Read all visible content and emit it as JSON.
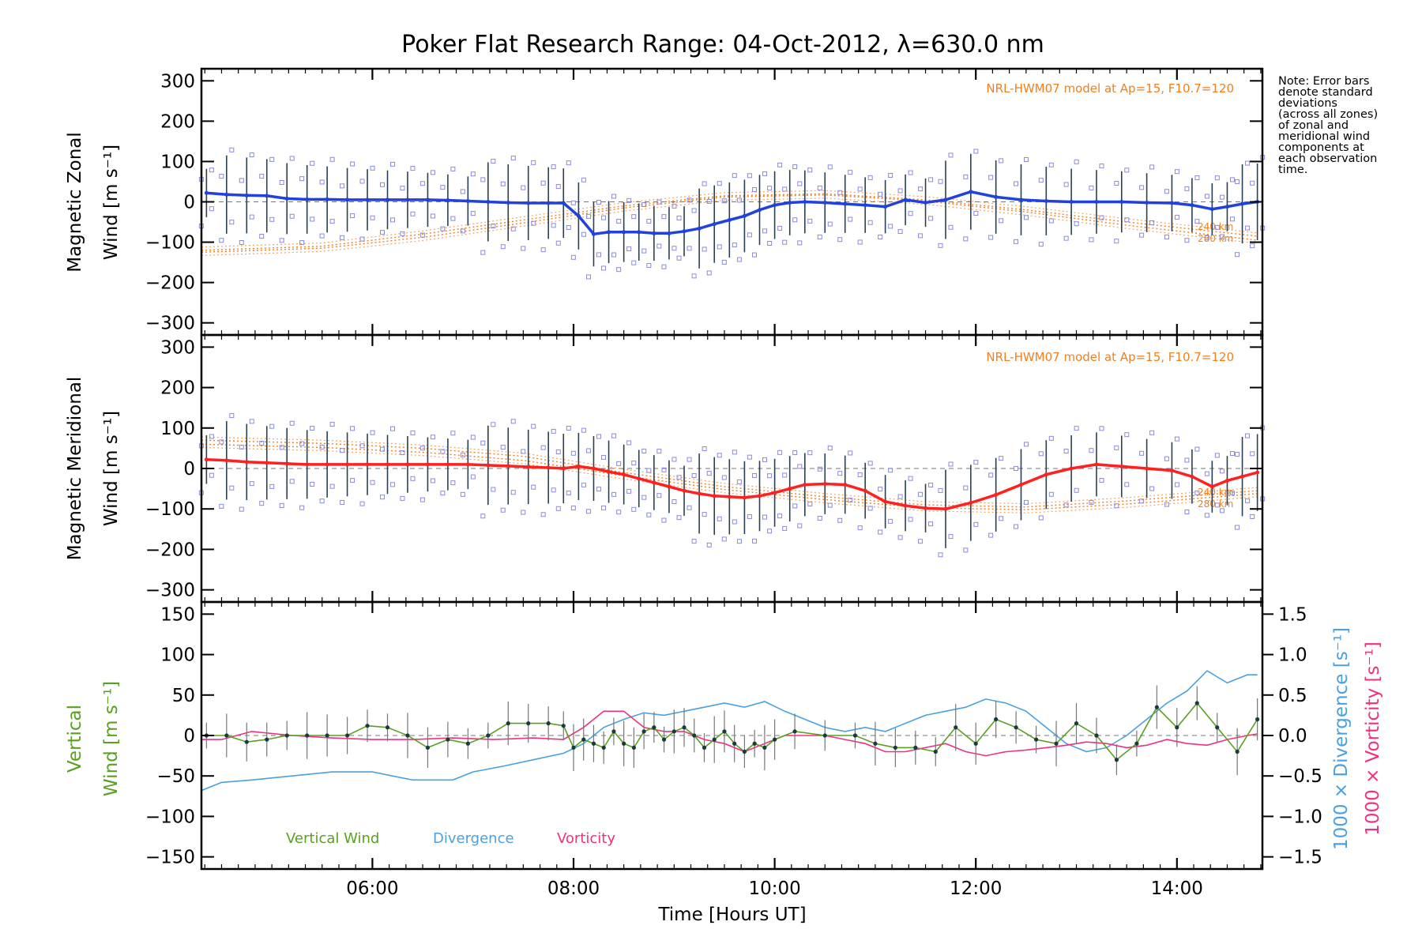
{
  "chart_data": [
    {
      "panel": "zonal",
      "type": "line",
      "title": "Poker Flat Research Range: 04-Oct-2012, λ=630.0 nm",
      "ylabel_line1": "Magnetic Zonal",
      "ylabel_line2": "Wind [m s⁻¹]",
      "ylim": [
        -330,
        330
      ],
      "yticks": [
        300,
        200,
        100,
        0,
        -100,
        -200,
        -300
      ],
      "xlim": [
        4.3,
        14.85
      ],
      "model_label": "NRL-HWM07 model at Ap=15, F10.7=120",
      "model_altitudes": [
        "240 km",
        "280 km"
      ],
      "mean_color": "#2040e0",
      "dense_color": "#4aa8e0",
      "scatter_color": "#8a8ae0",
      "model_color": "#f08020",
      "x": [
        4.35,
        4.55,
        4.75,
        4.95,
        5.15,
        5.35,
        5.55,
        5.75,
        5.95,
        6.15,
        6.35,
        6.55,
        6.75,
        6.95,
        7.15,
        7.35,
        7.55,
        7.75,
        7.9,
        8.05,
        8.2,
        8.35,
        8.5,
        8.65,
        8.8,
        8.95,
        9.1,
        9.25,
        9.4,
        9.55,
        9.7,
        9.85,
        10.0,
        10.15,
        10.3,
        10.5,
        10.7,
        10.9,
        11.1,
        11.3,
        11.5,
        11.7,
        11.95,
        12.2,
        12.45,
        12.7,
        12.95,
        13.2,
        13.45,
        13.7,
        13.95,
        14.15,
        14.35,
        14.5,
        14.65,
        14.8
      ],
      "y": [
        22,
        18,
        16,
        15,
        8,
        6,
        6,
        5,
        5,
        5,
        5,
        5,
        4,
        2,
        0,
        -2,
        -3,
        -3,
        -3,
        -35,
        -80,
        -75,
        -75,
        -75,
        -78,
        -78,
        -73,
        -66,
        -55,
        -45,
        -35,
        -20,
        -8,
        -2,
        0,
        -2,
        -5,
        -8,
        -12,
        5,
        -2,
        5,
        25,
        12,
        5,
        2,
        0,
        0,
        0,
        -2,
        -3,
        -8,
        -18,
        -12,
        -5,
        0
      ],
      "model_240km": [
        [
          4.3,
          -120
        ],
        [
          5.5,
          -110
        ],
        [
          6.5,
          -80
        ],
        [
          7.5,
          -45
        ],
        [
          8.5,
          -10
        ],
        [
          9.5,
          15
        ],
        [
          10.5,
          20
        ],
        [
          11.5,
          5
        ],
        [
          12.5,
          -20
        ],
        [
          13.5,
          -50
        ],
        [
          14.8,
          -85
        ]
      ],
      "model_280km": [
        [
          4.3,
          -125
        ],
        [
          5.5,
          -115
        ],
        [
          6.5,
          -88
        ],
        [
          7.5,
          -52
        ],
        [
          8.5,
          -15
        ],
        [
          9.5,
          12
        ],
        [
          10.5,
          17
        ],
        [
          11.5,
          2
        ],
        [
          12.5,
          -25
        ],
        [
          13.5,
          -58
        ],
        [
          14.8,
          -95
        ]
      ]
    },
    {
      "panel": "meridional",
      "type": "line",
      "ylabel_line1": "Magnetic Meridional",
      "ylabel_line2": "Wind [m s⁻¹]",
      "ylim": [
        -330,
        330
      ],
      "yticks": [
        300,
        200,
        100,
        0,
        -100,
        -200,
        -300
      ],
      "xlim": [
        4.3,
        14.85
      ],
      "model_label": "NRL-HWM07 model at Ap=15, F10.7=120",
      "model_altitudes": [
        "240 km",
        "280 km"
      ],
      "mean_color": "#ff2020",
      "dense_color": "#ff6080",
      "scatter_color": "#8a8ae0",
      "model_color": "#f08020",
      "x": [
        4.35,
        4.55,
        4.75,
        4.95,
        5.15,
        5.35,
        5.55,
        5.75,
        5.95,
        6.15,
        6.35,
        6.55,
        6.75,
        6.95,
        7.15,
        7.35,
        7.55,
        7.75,
        7.9,
        8.05,
        8.2,
        8.35,
        8.5,
        8.65,
        8.8,
        8.95,
        9.1,
        9.25,
        9.4,
        9.55,
        9.7,
        9.85,
        10.0,
        10.15,
        10.3,
        10.5,
        10.7,
        10.9,
        11.1,
        11.3,
        11.5,
        11.7,
        11.95,
        12.2,
        12.45,
        12.7,
        12.95,
        13.2,
        13.45,
        13.7,
        13.95,
        14.15,
        14.35,
        14.5,
        14.65,
        14.8
      ],
      "y": [
        22,
        20,
        16,
        14,
        12,
        10,
        10,
        10,
        10,
        10,
        10,
        10,
        10,
        10,
        8,
        6,
        4,
        2,
        0,
        5,
        0,
        -8,
        -15,
        -25,
        -35,
        -45,
        -55,
        -62,
        -68,
        -70,
        -72,
        -68,
        -60,
        -50,
        -40,
        -38,
        -40,
        -55,
        -82,
        -92,
        -98,
        -100,
        -85,
        -65,
        -40,
        -15,
        0,
        10,
        5,
        0,
        -5,
        -20,
        -45,
        -30,
        -20,
        -10
      ],
      "model_240km": [
        [
          4.3,
          70
        ],
        [
          5.5,
          62
        ],
        [
          6.5,
          50
        ],
        [
          7.5,
          30
        ],
        [
          8.5,
          -10
        ],
        [
          9.5,
          -45
        ],
        [
          10.5,
          -70
        ],
        [
          11.5,
          -90
        ],
        [
          12.5,
          -95
        ],
        [
          13.5,
          -80
        ],
        [
          14.8,
          -55
        ]
      ],
      "model_280km": [
        [
          4.3,
          60
        ],
        [
          5.5,
          52
        ],
        [
          6.5,
          40
        ],
        [
          7.5,
          20
        ],
        [
          8.5,
          -18
        ],
        [
          9.5,
          -52
        ],
        [
          10.5,
          -77
        ],
        [
          11.5,
          -97
        ],
        [
          12.5,
          -102
        ],
        [
          13.5,
          -88
        ],
        [
          14.8,
          -62
        ]
      ]
    },
    {
      "panel": "vertical",
      "type": "line",
      "ylabel_line1": "Vertical",
      "ylabel_line2": "Wind [m s⁻¹]",
      "right_ylabel_div": "1000 × Divergence [s⁻¹]",
      "right_ylabel_vort": "1000 × Vorticity [s⁻¹]",
      "ylim": [
        -165,
        165
      ],
      "yticks": [
        150,
        100,
        50,
        0,
        -50,
        -100,
        -150
      ],
      "right_ylim": [
        -1.65,
        1.65
      ],
      "right_yticks": [
        "1.5",
        "1.0",
        "0.5",
        "0.0",
        "−0.5",
        "−1.0",
        "−1.5"
      ],
      "right_tick_values": [
        1.5,
        1.0,
        0.5,
        0.0,
        -0.5,
        -1.0,
        -1.5
      ],
      "xlim": [
        4.3,
        14.85
      ],
      "xticks": [
        6,
        8,
        10,
        12,
        14
      ],
      "xtick_labels": [
        "06:00",
        "08:00",
        "10:00",
        "12:00",
        "14:00"
      ],
      "xlabel": "Time [Hours UT]",
      "legend": [
        {
          "name": "Vertical Wind",
          "color": "#5aa020"
        },
        {
          "name": "Divergence",
          "color": "#4aa0e0"
        },
        {
          "name": "Vorticity",
          "color": "#f03080"
        }
      ],
      "vertical_wind": {
        "x": [
          4.35,
          4.55,
          4.75,
          4.95,
          5.15,
          5.35,
          5.55,
          5.75,
          5.95,
          6.15,
          6.35,
          6.55,
          6.75,
          6.95,
          7.15,
          7.35,
          7.55,
          7.75,
          7.9,
          8.0,
          8.1,
          8.2,
          8.3,
          8.4,
          8.5,
          8.6,
          8.7,
          8.8,
          8.9,
          9.0,
          9.1,
          9.2,
          9.3,
          9.4,
          9.5,
          9.6,
          9.7,
          9.8,
          9.9,
          10.0,
          10.2,
          10.5,
          10.8,
          11.0,
          11.2,
          11.4,
          11.6,
          11.8,
          12.0,
          12.2,
          12.4,
          12.6,
          12.8,
          13.0,
          13.2,
          13.4,
          13.6,
          13.8,
          14.0,
          14.2,
          14.4,
          14.6,
          14.8
        ],
        "y": [
          0,
          0,
          -8,
          -5,
          0,
          0,
          0,
          0,
          12,
          10,
          0,
          -15,
          -5,
          -10,
          0,
          15,
          15,
          15,
          12,
          -15,
          -5,
          -10,
          -15,
          5,
          -10,
          -15,
          5,
          10,
          -5,
          5,
          10,
          0,
          -15,
          -5,
          5,
          -10,
          -20,
          -10,
          -15,
          -5,
          5,
          0,
          0,
          -10,
          -15,
          -15,
          -20,
          10,
          -10,
          20,
          10,
          -5,
          -10,
          15,
          0,
          -30,
          -10,
          35,
          10,
          40,
          10,
          -20,
          20
        ],
        "color": "#5aa020"
      },
      "divergence": {
        "x": [
          4.3,
          4.5,
          4.8,
          5.2,
          5.6,
          6.0,
          6.4,
          6.8,
          7.0,
          7.3,
          7.6,
          7.9,
          8.1,
          8.3,
          8.5,
          8.7,
          8.9,
          9.1,
          9.3,
          9.5,
          9.7,
          9.9,
          10.1,
          10.3,
          10.5,
          10.7,
          10.9,
          11.1,
          11.3,
          11.5,
          11.7,
          11.9,
          12.1,
          12.3,
          12.5,
          12.7,
          12.9,
          13.1,
          13.3,
          13.5,
          13.7,
          13.9,
          14.1,
          14.3,
          14.5,
          14.7,
          14.8
        ],
        "y": [
          -0.68,
          -0.58,
          -0.55,
          -0.5,
          -0.45,
          -0.45,
          -0.55,
          -0.55,
          -0.45,
          -0.38,
          -0.3,
          -0.22,
          -0.1,
          0.1,
          0.2,
          0.28,
          0.25,
          0.3,
          0.35,
          0.4,
          0.35,
          0.42,
          0.3,
          0.2,
          0.1,
          0.05,
          0.1,
          0.05,
          0.15,
          0.25,
          0.3,
          0.35,
          0.45,
          0.4,
          0.3,
          0.1,
          -0.1,
          -0.2,
          -0.15,
          0.0,
          0.2,
          0.4,
          0.55,
          0.8,
          0.65,
          0.75,
          0.75
        ],
        "color": "#4aa0e0"
      },
      "vorticity": {
        "x": [
          4.3,
          4.5,
          4.8,
          5.2,
          5.6,
          6.0,
          6.4,
          6.8,
          7.2,
          7.6,
          7.9,
          8.1,
          8.3,
          8.5,
          8.7,
          8.9,
          9.1,
          9.3,
          9.5,
          9.7,
          9.9,
          10.1,
          10.3,
          10.5,
          10.7,
          10.9,
          11.1,
          11.3,
          11.5,
          11.7,
          11.9,
          12.1,
          12.3,
          12.5,
          12.7,
          12.9,
          13.1,
          13.3,
          13.5,
          13.7,
          13.9,
          14.1,
          14.3,
          14.5,
          14.7,
          14.8
        ],
        "y": [
          -0.05,
          -0.05,
          0.05,
          0.0,
          -0.03,
          -0.05,
          -0.05,
          -0.03,
          -0.05,
          -0.03,
          -0.05,
          0.1,
          0.3,
          0.3,
          0.1,
          0.05,
          0.05,
          -0.05,
          -0.1,
          -0.2,
          -0.1,
          0.0,
          0.0,
          0.0,
          -0.05,
          -0.1,
          -0.2,
          -0.2,
          -0.15,
          -0.1,
          -0.2,
          -0.25,
          -0.2,
          -0.18,
          -0.15,
          -0.12,
          -0.08,
          -0.1,
          -0.15,
          -0.12,
          -0.05,
          -0.1,
          -0.12,
          -0.05,
          0.0,
          0.02
        ],
        "color": "#f03080"
      }
    }
  ],
  "side_note": [
    "Note: Error bars",
    "denote standard",
    "deviations",
    "(across all zones)",
    "of zonal and",
    "meridional wind",
    "components at",
    "each observation",
    "time."
  ]
}
